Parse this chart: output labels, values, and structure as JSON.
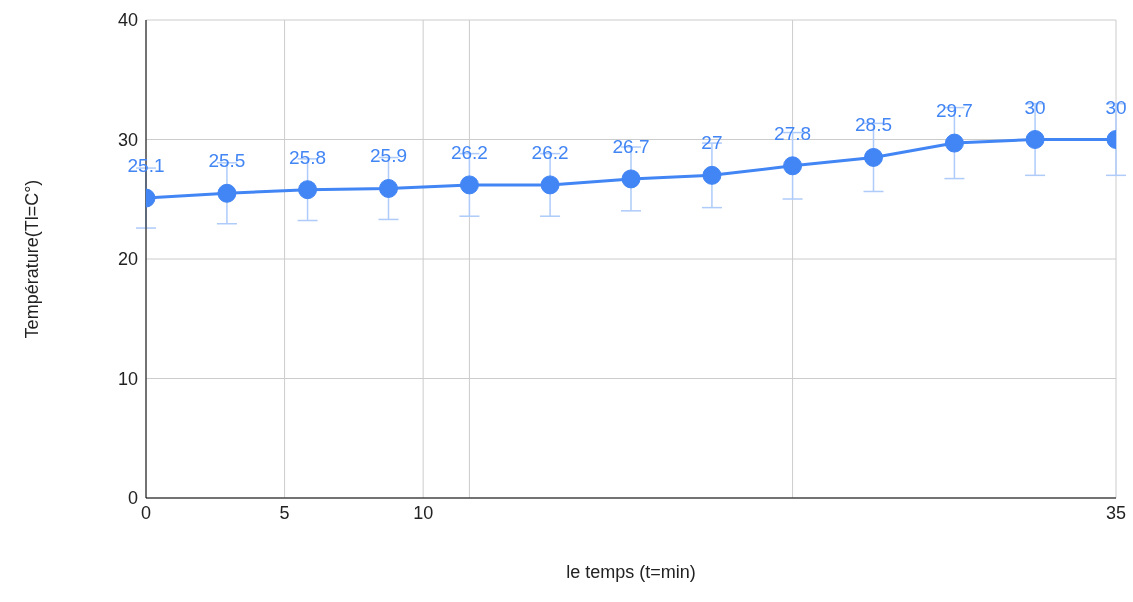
{
  "chart_data": {
    "type": "line",
    "xlabel": "le temps (t=min)",
    "ylabel": "Température(Tl=C°)",
    "x": [
      0,
      2.92,
      5.83,
      8.75,
      11.67,
      14.58,
      17.5,
      20.42,
      23.33,
      26.25,
      29.17,
      32.08,
      35
    ],
    "series": [
      {
        "color": "#4285f4",
        "values": [
          25.1,
          25.5,
          25.8,
          25.9,
          26.2,
          26.2,
          26.7,
          27,
          27.8,
          28.5,
          29.7,
          30,
          30
        ],
        "errors": [
          2.51,
          2.55,
          2.58,
          2.59,
          2.62,
          2.62,
          2.67,
          2.7,
          2.78,
          2.85,
          2.97,
          3,
          3
        ]
      }
    ],
    "xlim": [
      0,
      35
    ],
    "xticks": [
      0,
      5,
      10,
      {
        "value": 11.67,
        "label": null
      },
      {
        "value": 23.33,
        "label": null
      },
      35
    ],
    "ylim": [
      0,
      40
    ],
    "yticks": [
      0,
      10,
      20,
      30,
      40
    ],
    "grid": true,
    "marker": "circle",
    "line_style": "solid",
    "data_labels": true,
    "legend": false
  }
}
